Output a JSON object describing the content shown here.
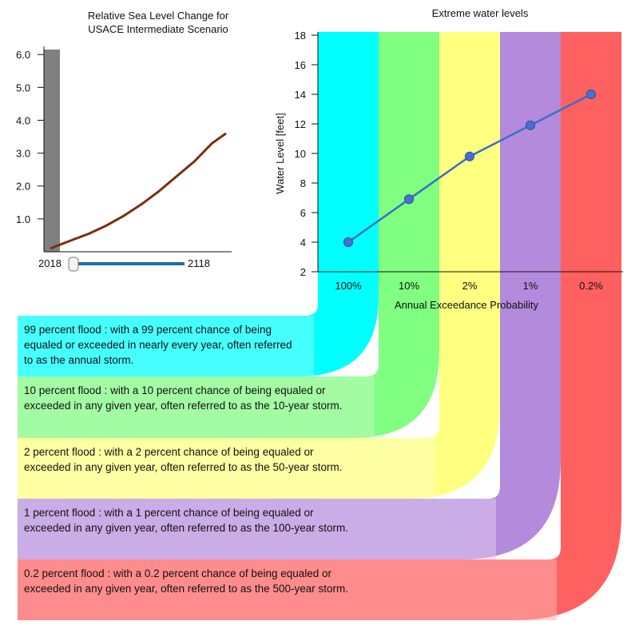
{
  "chart_data": [
    {
      "type": "line",
      "title": "Relative Sea Level Change for USACE Intermediate Scenario",
      "title_lines": [
        "Relative Sea Level Change for",
        "USACE Intermediate Scenario"
      ],
      "yticks": [
        "1.0",
        "2.0",
        "3.0",
        "4.0",
        "5.0",
        "6.0"
      ],
      "ylim": [
        0,
        6.2
      ],
      "x_range": [
        2018,
        2118
      ],
      "x": [
        2018,
        2030,
        2040,
        2050,
        2060,
        2070,
        2080,
        2090,
        2100,
        2110,
        2118
      ],
      "values": [
        0.1,
        0.35,
        0.55,
        0.8,
        1.1,
        1.45,
        1.85,
        2.3,
        2.75,
        3.3,
        3.6
      ],
      "slider": {
        "min_label": "2018",
        "max_label": "2118",
        "value": 2018
      },
      "colors": {
        "line": "#7a2e0e",
        "marker_band": "#808080",
        "slider": "#1f6fa3"
      }
    },
    {
      "type": "line",
      "title": "Extreme water levels",
      "ylabel": "Water Level [feet]",
      "xlabel": "Annual Exceedance Probability",
      "yticks": [
        2,
        4,
        6,
        8,
        10,
        12,
        14,
        16,
        18
      ],
      "ylim": [
        2,
        18
      ],
      "categories": [
        "100%",
        "10%",
        "2%",
        "1%",
        "0.2%"
      ],
      "values": [
        4,
        6.9,
        9.8,
        11.9,
        14
      ],
      "colors": {
        "line": "#3a6fc9",
        "points": "#4a6fd0"
      }
    }
  ],
  "bands": [
    {
      "color": "#00ffff",
      "fill": "#80ffff",
      "lines": [
        "99 percent flood : with a 99 percent chance of being",
        "equaled or exceeded in nearly every year, often referred",
        "to as the annual storm."
      ]
    },
    {
      "color": "#80ff80",
      "fill": "#bff7bf",
      "lines": [
        "10 percent flood : with a 10 percent chance of being equaled or",
        "exceeded in any given year, often referred to as the 10-year storm."
      ]
    },
    {
      "color": "#ffff80",
      "fill": "#ffffbf",
      "lines": [
        "2 percent flood : with a 2 percent chance of being equaled or",
        "exceeded in any given year, often referred to as the 50-year storm."
      ]
    },
    {
      "color": "#b48adc",
      "fill": "#dcc8ee",
      "lines": [
        "1 percent flood : with a 1 percent chance of being equaled or",
        "exceeded in any given year, often referred to as the 100-year storm."
      ]
    },
    {
      "color": "#ff6060",
      "fill": "#ffb0b0",
      "lines": [
        "0.2 percent flood : with a 0.2 percent chance of being equaled or",
        "exceeded in any given year, often referred to as the 500-year storm."
      ]
    }
  ]
}
